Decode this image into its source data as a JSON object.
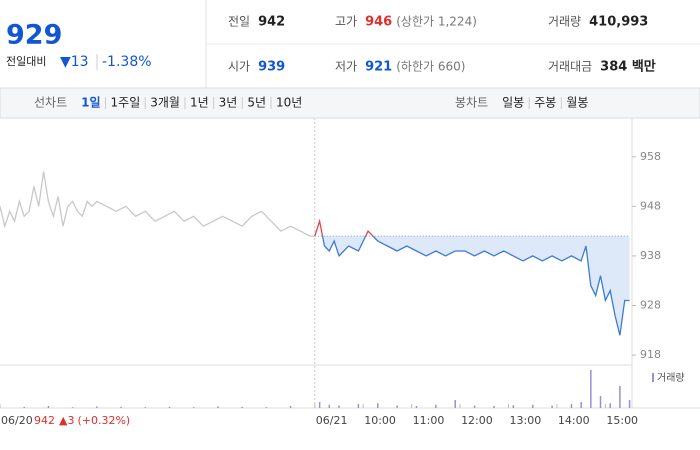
{
  "header": {
    "price": 929,
    "change_label": "전일대비",
    "change": "▼13",
    "rate": "-1.38%",
    "info": [
      {
        "label": "전일",
        "value": 942
      },
      {
        "label": "고가",
        "value": 946,
        "note": "(상한가 1,224)"
      },
      {
        "label": "거래량",
        "value": "410,993"
      },
      {
        "label": "시가",
        "value": 939
      },
      {
        "label": "저가",
        "value": 921,
        "note": "(하한가 660)"
      },
      {
        "label": "거래대금",
        "value": "384 백만"
      }
    ]
  },
  "toolbar": {
    "line_chart": {
      "label": "선차트",
      "periods": [
        "1일",
        "1주일",
        "3개월",
        "1년",
        "3년",
        "5년",
        "10년"
      ]
    },
    "candle_chart": {
      "label": "봉차트",
      "periods": [
        "일봉",
        "주봉",
        "월봉"
      ]
    }
  },
  "chart_data": {
    "type": "line",
    "baseline": 942,
    "prev_change": "▲3",
    "prev_rate": "(+0.32%)",
    "xlim": [
      0,
      13.05
    ],
    "ylim": [
      916,
      964
    ],
    "yticks": [
      918,
      928,
      938,
      948,
      958
    ],
    "grid": false,
    "xticks": [
      {
        "value": 0,
        "label": "06/20"
      },
      {
        "value": 6.5,
        "label": "06/21"
      },
      {
        "value": 7.5,
        "label": "10:00"
      },
      {
        "value": 8.5,
        "label": "11:00"
      },
      {
        "value": 9.5,
        "label": "12:00"
      },
      {
        "value": 10.5,
        "label": "13:00"
      },
      {
        "value": 11.5,
        "label": "14:00"
      },
      {
        "value": 12.5,
        "label": "15:00"
      }
    ],
    "prev_day": {
      "color": "#c8c8c8",
      "x": [
        0,
        0.1,
        0.2,
        0.3,
        0.4,
        0.5,
        0.6,
        0.7,
        0.8,
        0.9,
        1.0,
        1.1,
        1.2,
        1.3,
        1.4,
        1.5,
        1.6,
        1.7,
        1.8,
        1.9,
        2.0,
        2.2,
        2.4,
        2.6,
        2.8,
        3.0,
        3.2,
        3.4,
        3.6,
        3.8,
        4.0,
        4.2,
        4.4,
        4.6,
        4.8,
        5.0,
        5.2,
        5.4,
        5.6,
        5.8,
        6.0,
        6.2,
        6.4,
        6.5
      ],
      "values": [
        948,
        944,
        947,
        945,
        949,
        946,
        947,
        952,
        948,
        955,
        949,
        946,
        950,
        944,
        948,
        949,
        947,
        946,
        949,
        948,
        949,
        948,
        947,
        948,
        946,
        947,
        945,
        946,
        947,
        945,
        946,
        944,
        945,
        946,
        945,
        944,
        946,
        947,
        945,
        943,
        944,
        943,
        942,
        942
      ]
    },
    "today": {
      "color": "#3b7ad9",
      "up_color": "#e8414b",
      "area_color": "#dde9f8",
      "x": [
        6.5,
        6.6,
        6.7,
        6.8,
        6.9,
        7.0,
        7.2,
        7.4,
        7.6,
        7.8,
        8.0,
        8.2,
        8.4,
        8.6,
        8.8,
        9.0,
        9.2,
        9.4,
        9.6,
        9.8,
        10.0,
        10.2,
        10.4,
        10.6,
        10.8,
        11.0,
        11.2,
        11.4,
        11.6,
        11.8,
        12.0,
        12.1,
        12.2,
        12.3,
        12.4,
        12.5,
        12.6,
        12.7,
        12.8,
        12.9,
        13.0
      ],
      "values": [
        942,
        945,
        940,
        939,
        941,
        938,
        940,
        939,
        943,
        941,
        940,
        939,
        940,
        939,
        938,
        939,
        938,
        939,
        939,
        938,
        939,
        938,
        939,
        938,
        937,
        938,
        937,
        938,
        937,
        938,
        937,
        940,
        932,
        930,
        934,
        929,
        931,
        926,
        922,
        929,
        929
      ]
    },
    "volume": {
      "name": "거래량",
      "color": "#9b8fd6",
      "vlim": [
        0,
        100
      ],
      "x": [
        0.5,
        1.0,
        1.5,
        2.0,
        2.5,
        3.0,
        3.5,
        4.0,
        4.5,
        5.0,
        5.5,
        6.0,
        6.6,
        6.8,
        7.0,
        7.4,
        7.8,
        8.2,
        8.6,
        9.0,
        9.4,
        9.8,
        10.2,
        10.6,
        11.0,
        11.4,
        11.8,
        12.0,
        12.2,
        12.4,
        12.6,
        12.8,
        13.0
      ],
      "values": [
        3,
        5,
        2,
        4,
        3,
        2,
        3,
        2,
        4,
        3,
        2,
        5,
        15,
        8,
        6,
        10,
        12,
        6,
        5,
        8,
        20,
        6,
        5,
        7,
        8,
        6,
        10,
        15,
        95,
        30,
        12,
        55,
        20
      ]
    }
  }
}
